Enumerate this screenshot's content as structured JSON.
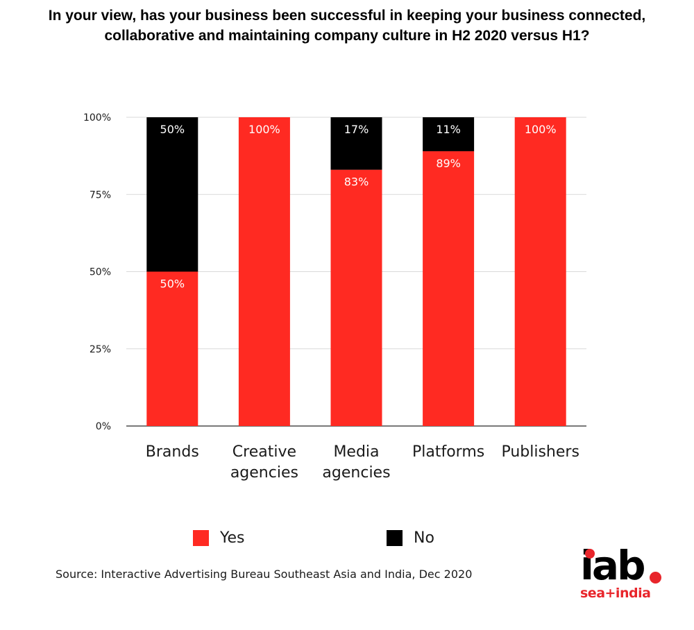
{
  "title": "In your view, has your business been successful in keeping your business connected, collaborative and maintaining company culture in H2 2020 versus H1?",
  "source": "Source: Interactive Advertising Bureau Southeast Asia and India, Dec 2020",
  "logo": {
    "main": "iab",
    "sub": "sea+india"
  },
  "colors": {
    "yes": "#ff2a22",
    "no": "#000000",
    "grid": "#d9d9d9",
    "axis": "#4d4d4d",
    "brand_red": "#e8252b"
  },
  "legend": {
    "yes_label": "Yes",
    "no_label": "No"
  },
  "chart_data": {
    "type": "bar",
    "stacked": true,
    "categories": [
      [
        "Brands"
      ],
      [
        "Creative",
        "agencies"
      ],
      [
        "Media",
        "agencies"
      ],
      [
        "Platforms"
      ],
      [
        "Publishers"
      ]
    ],
    "series": [
      {
        "name": "Yes",
        "values": [
          50,
          100,
          83,
          89,
          100
        ],
        "labels": [
          "50%",
          "100%",
          "83%",
          "89%",
          "100%"
        ]
      },
      {
        "name": "No",
        "values": [
          50,
          0,
          17,
          11,
          0
        ],
        "labels": [
          "50%",
          "",
          "17%",
          "11%",
          ""
        ]
      }
    ],
    "y_ticks": [
      0,
      25,
      50,
      75,
      100
    ],
    "y_tick_labels": [
      "0%",
      "25%",
      "50%",
      "75%",
      "100%"
    ],
    "ylim": [
      0,
      100
    ],
    "grid": true,
    "legend_position": "bottom"
  }
}
